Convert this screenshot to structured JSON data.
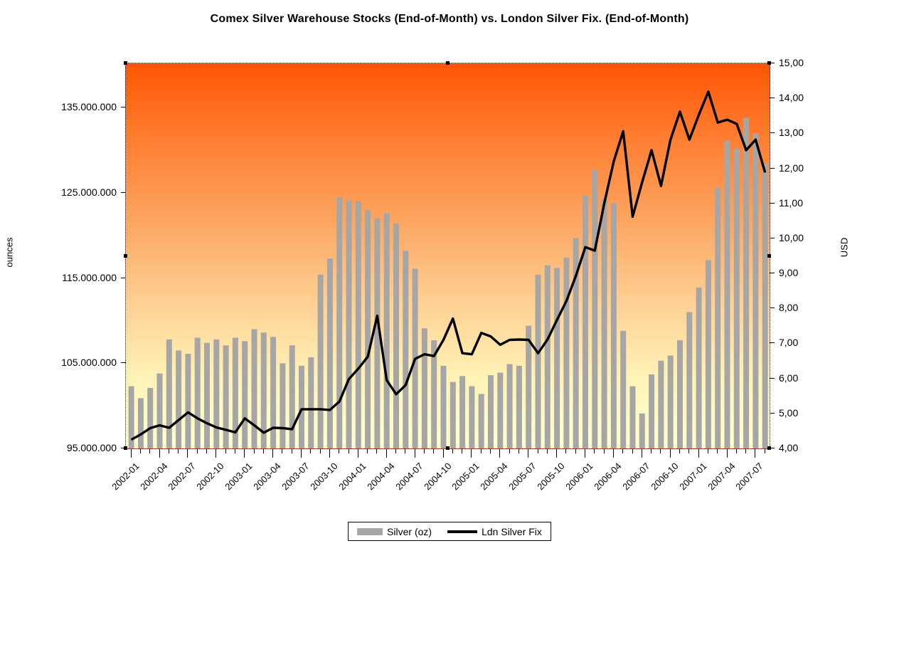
{
  "title": "Comex Silver Warehouse Stocks (End-of-Month) vs. London Silver Fix. (End-of-Month)",
  "legend": {
    "position": "bottom-center",
    "items": [
      {
        "label": "Silver (oz)",
        "swatch": "bar",
        "color": "#a6a6a6"
      },
      {
        "label": "Ldn Silver Fix",
        "swatch": "line",
        "color": "#000000"
      }
    ]
  },
  "chart_data": {
    "type": "combo-bar-line",
    "title": "Comex Silver Warehouse Stocks (End-of-Month) vs. London Silver Fix. (End-of-Month)",
    "grid": "off",
    "legend_position": "bottom-center",
    "plot_background_gradient": [
      "#ff5504 0%",
      "#ff7b2e 18%",
      "#fca45f 40%",
      "#ffd093 62%",
      "#fff3b7 82%",
      "#ffffcf 100%"
    ],
    "categories": [
      "2002-01",
      "2002-02",
      "2002-03",
      "2002-04",
      "2002-05",
      "2002-06",
      "2002-07",
      "2002-08",
      "2002-09",
      "2002-10",
      "2002-11",
      "2002-12",
      "2003-01",
      "2003-02",
      "2003-03",
      "2003-04",
      "2003-05",
      "2003-06",
      "2003-07",
      "2003-08",
      "2003-09",
      "2003-10",
      "2003-11",
      "2003-12",
      "2004-01",
      "2004-02",
      "2004-03",
      "2004-04",
      "2004-05",
      "2004-06",
      "2004-07",
      "2004-08",
      "2004-09",
      "2004-10",
      "2004-11",
      "2004-12",
      "2005-01",
      "2005-02",
      "2005-03",
      "2005-04",
      "2005-05",
      "2005-06",
      "2005-07",
      "2005-08",
      "2005-09",
      "2005-10",
      "2005-11",
      "2005-12",
      "2006-01",
      "2006-02",
      "2006-03",
      "2006-04",
      "2006-05",
      "2006-06",
      "2006-07",
      "2006-08",
      "2006-09",
      "2006-10",
      "2006-11",
      "2006-12",
      "2007-01",
      "2007-02",
      "2007-03",
      "2007-04",
      "2007-05",
      "2007-06",
      "2007-07",
      "2007-08"
    ],
    "x_tick_labels": [
      "2002-01",
      "2002-04",
      "2002-07",
      "2002-10",
      "2003-01",
      "2003-04",
      "2003-07",
      "2003-10",
      "2004-01",
      "2004-04",
      "2004-07",
      "2004-10",
      "2005-01",
      "2005-04",
      "2005-07",
      "2005-10",
      "2006-01",
      "2006-04",
      "2006-07",
      "2006-10",
      "2007-01",
      "2007-04",
      "2007-07"
    ],
    "x_label_every": 3,
    "series": [
      {
        "name": "Silver (oz)",
        "type": "bar",
        "axis": "left",
        "color": "#a6a6a6",
        "values": [
          102300000,
          100900000,
          102100000,
          103800000,
          107800000,
          106500000,
          106100000,
          108000000,
          107400000,
          107800000,
          107100000,
          108000000,
          107600000,
          109000000,
          108600000,
          108100000,
          105000000,
          107100000,
          104700000,
          105700000,
          115400000,
          117300000,
          124500000,
          124100000,
          124000000,
          123000000,
          122000000,
          122600000,
          121400000,
          118200000,
          116100000,
          109100000,
          107700000,
          104700000,
          102800000,
          103500000,
          102300000,
          101400000,
          103600000,
          103900000,
          104900000,
          104700000,
          109400000,
          115400000,
          116500000,
          116200000,
          117400000,
          119700000,
          124700000,
          127700000,
          124300000,
          123800000,
          108800000,
          102300000,
          99100000,
          103700000,
          105300000,
          105900000,
          107700000,
          111000000,
          113900000,
          117100000,
          125600000,
          131100000,
          130200000,
          133800000,
          132000000,
          128500000
        ]
      },
      {
        "name": "Ldn Silver Fix",
        "type": "line",
        "axis": "right",
        "color": "#000000",
        "line_width": 3.4,
        "values": [
          4.25,
          4.4,
          4.58,
          4.66,
          4.59,
          4.81,
          5.03,
          4.86,
          4.72,
          4.6,
          4.53,
          4.46,
          4.86,
          4.66,
          4.45,
          4.59,
          4.58,
          4.55,
          5.12,
          5.12,
          5.12,
          5.1,
          5.34,
          5.98,
          6.28,
          6.62,
          7.79,
          5.95,
          5.55,
          5.81,
          6.56,
          6.69,
          6.64,
          7.1,
          7.71,
          6.72,
          6.69,
          7.3,
          7.2,
          6.96,
          7.1,
          7.11,
          7.1,
          6.72,
          7.11,
          7.67,
          8.21,
          8.93,
          9.75,
          9.65,
          11.0,
          12.2,
          13.06,
          10.62,
          11.6,
          12.52,
          11.5,
          12.82,
          13.62,
          12.82,
          13.53,
          14.19,
          13.31,
          13.39,
          13.27,
          12.52,
          12.82,
          11.88
        ]
      }
    ],
    "y_left": {
      "title": "ounces",
      "min": 95000000,
      "max": 140200000,
      "ticks": [
        {
          "value": 95000000,
          "label": "95.000.000"
        },
        {
          "value": 105000000,
          "label": "105.000.000"
        },
        {
          "value": 115000000,
          "label": "115.000.000"
        },
        {
          "value": 125000000,
          "label": "125.000.000"
        },
        {
          "value": 135000000,
          "label": "135.000.000"
        }
      ]
    },
    "y_right": {
      "title": "USD",
      "min": 4,
      "max": 15,
      "ticks": [
        {
          "value": 4,
          "label": "4,00"
        },
        {
          "value": 5,
          "label": "5,00"
        },
        {
          "value": 6,
          "label": "6,00"
        },
        {
          "value": 7,
          "label": "7,00"
        },
        {
          "value": 8,
          "label": "8,00"
        },
        {
          "value": 9,
          "label": "9,00"
        },
        {
          "value": 10,
          "label": "10,00"
        },
        {
          "value": 11,
          "label": "11,00"
        },
        {
          "value": 12,
          "label": "12,00"
        },
        {
          "value": 13,
          "label": "13,00"
        },
        {
          "value": 14,
          "label": "14,00"
        },
        {
          "value": 15,
          "label": "15,00"
        }
      ]
    }
  }
}
